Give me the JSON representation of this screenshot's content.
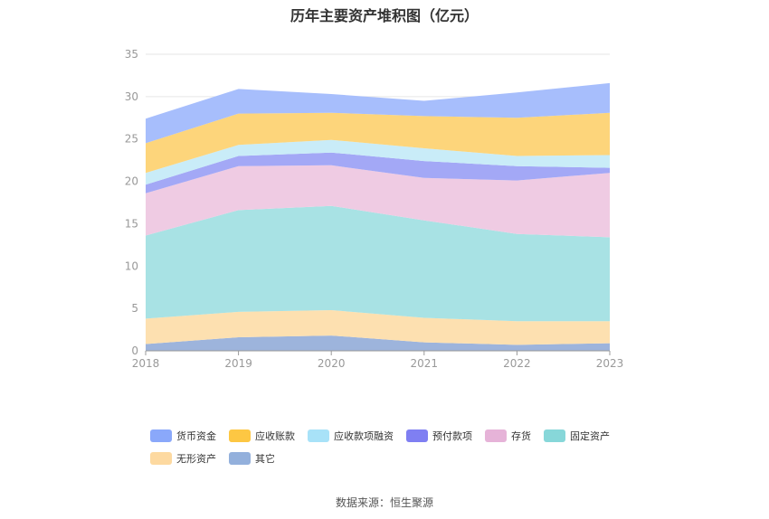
{
  "title": "历年主要资产堆积图（亿元）",
  "source": "数据来源：恒生聚源",
  "chart_data": {
    "type": "area",
    "stacked": true,
    "categories": [
      "2018",
      "2019",
      "2020",
      "2021",
      "2022",
      "2023"
    ],
    "ylim": [
      0,
      35
    ],
    "yticks": [
      0,
      5,
      10,
      15,
      20,
      25,
      30,
      35
    ],
    "grid": true,
    "legend_position": "bottom",
    "series": [
      {
        "name": "其它",
        "color": "#9db4dc",
        "values": [
          0.8,
          1.6,
          1.8,
          1.0,
          0.7,
          0.9
        ]
      },
      {
        "name": "无形资产",
        "color": "#fde0b0",
        "values": [
          3.0,
          3.0,
          3.0,
          2.9,
          2.8,
          2.6
        ]
      },
      {
        "name": "固定资产",
        "color": "#a8e2e4",
        "values": [
          9.8,
          12.0,
          12.3,
          11.5,
          10.3,
          9.9
        ]
      },
      {
        "name": "存货",
        "color": "#efcbe3",
        "values": [
          5.0,
          5.2,
          4.8,
          5.0,
          6.3,
          7.6
        ]
      },
      {
        "name": "预付款项",
        "color": "#a3a8f6",
        "values": [
          1.0,
          1.2,
          1.5,
          2.0,
          1.7,
          0.6
        ]
      },
      {
        "name": "应收款项融资",
        "color": "#c9ecf8",
        "values": [
          1.4,
          1.3,
          1.5,
          1.5,
          1.2,
          1.5
        ]
      },
      {
        "name": "应收账款",
        "color": "#fdd57b",
        "values": [
          3.5,
          3.7,
          3.2,
          3.8,
          4.5,
          5.0
        ]
      },
      {
        "name": "货币资金",
        "color": "#a7befc",
        "values": [
          2.9,
          2.9,
          2.2,
          1.8,
          3.0,
          3.5
        ]
      }
    ],
    "legend_order": [
      "货币资金",
      "应收账款",
      "应收款项融资",
      "预付款项",
      "存货",
      "固定资产",
      "无形资产",
      "其它"
    ],
    "legend_colors": [
      "#8aa8fa",
      "#fdc743",
      "#a8e2f8",
      "#7f7ff2",
      "#e6b3d8",
      "#87d7d9",
      "#fdd9a0",
      "#93b0dc"
    ]
  }
}
